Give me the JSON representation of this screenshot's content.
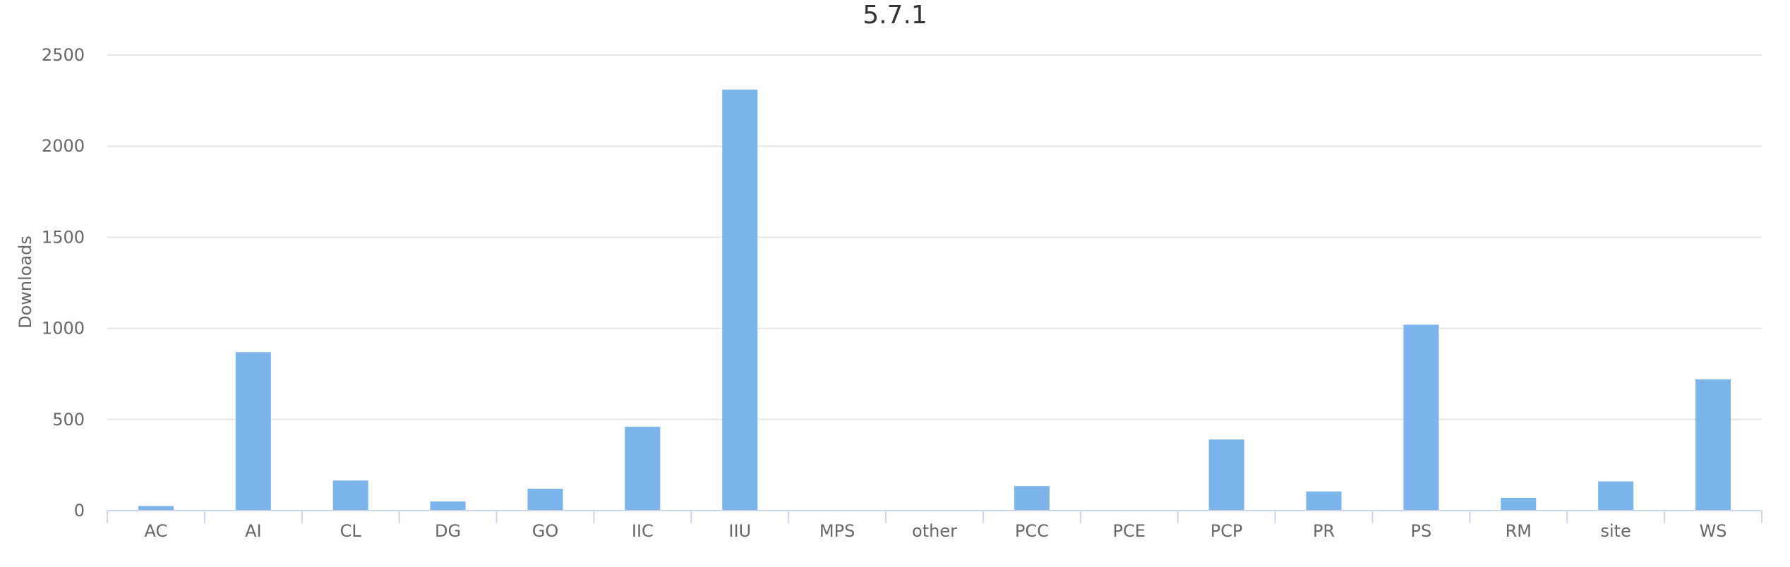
{
  "chart_data": {
    "type": "bar",
    "title": "5.7.1",
    "xlabel": "",
    "ylabel": "Downloads",
    "ylim": [
      0,
      2500
    ],
    "yticks": [
      0,
      500,
      1000,
      1500,
      2000,
      2500
    ],
    "grid": true,
    "legend": "none",
    "bar_color": "#7cb5ec",
    "categories": [
      "AC",
      "AI",
      "CL",
      "DG",
      "GO",
      "IIC",
      "IIU",
      "MPS",
      "other",
      "PCC",
      "PCE",
      "PCP",
      "PR",
      "PS",
      "RM",
      "site",
      "WS"
    ],
    "values": [
      25,
      870,
      165,
      50,
      120,
      460,
      2310,
      0,
      0,
      135,
      0,
      390,
      105,
      1020,
      70,
      160,
      720
    ]
  }
}
